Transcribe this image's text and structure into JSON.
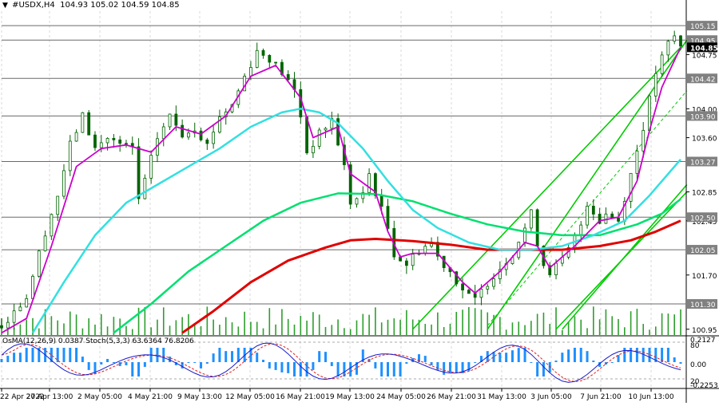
{
  "header": {
    "symbol": "#USDX,H4",
    "ohlc": "104.93 105.02 104.59 104.85"
  },
  "indicator_header": {
    "text": "OsMA(12,26,9) 0.0387  Stoch(5,3,3) 63.6364 76.8206"
  },
  "colors": {
    "background": "#ffffff",
    "candle": "#006400",
    "ema_fast": "#cc00cc",
    "ema_mid": "#33e0e0",
    "ema_slow": "#00e070",
    "ema_long": "#e00000",
    "channel": "#00cc00",
    "volume": "#2e9e2e",
    "osma": "#1e90ff",
    "stoch_main": "#1a1acc",
    "stoch_signal": "#e02020",
    "price_tag": "#000000"
  },
  "chart_data": {
    "type": "candlestick",
    "timeframe": "H4",
    "price_levels": [
      105.15,
      104.95,
      104.42,
      103.9,
      103.27,
      102.5,
      102.05,
      101.3
    ],
    "current_price": 104.85,
    "axis_ticks": [
      104.75,
      104.0,
      103.6,
      102.85,
      102.45,
      101.7,
      100.95
    ],
    "price_range": [
      100.87,
      105.35
    ],
    "x_labels": [
      "22 Apr 2022",
      "27 Apr 13:00",
      "2 May 05:00",
      "4 May 21:00",
      "9 May 13:00",
      "12 May 05:00",
      "16 May 21:00",
      "19 May 13:00",
      "24 May 05:00",
      "26 May 21:00",
      "31 May 13:00",
      "3 Jun 05:00",
      "7 Jun 21:00",
      "10 Jun 13:00"
    ],
    "close_path": [
      [
        0,
        101.0
      ],
      [
        4,
        101.4
      ],
      [
        7,
        102.3
      ],
      [
        9,
        102.8
      ],
      [
        11,
        103.5
      ],
      [
        13,
        103.9
      ],
      [
        15,
        103.45
      ],
      [
        17,
        103.6
      ],
      [
        19,
        103.5
      ],
      [
        21,
        103.45
      ],
      [
        22,
        102.75
      ],
      [
        23,
        103.0
      ],
      [
        25,
        103.6
      ],
      [
        27,
        103.9
      ],
      [
        29,
        103.65
      ],
      [
        31,
        103.75
      ],
      [
        33,
        103.5
      ],
      [
        35,
        103.9
      ],
      [
        37,
        104.05
      ],
      [
        39,
        104.45
      ],
      [
        41,
        104.8
      ],
      [
        43,
        104.7
      ],
      [
        45,
        104.5
      ],
      [
        47,
        104.25
      ],
      [
        48,
        103.9
      ],
      [
        49,
        103.4
      ],
      [
        51,
        103.65
      ],
      [
        53,
        103.85
      ],
      [
        55,
        103.2
      ],
      [
        56,
        102.7
      ],
      [
        58,
        102.8
      ],
      [
        59,
        103.1
      ],
      [
        60,
        102.85
      ],
      [
        62,
        102.35
      ],
      [
        63,
        102.0
      ],
      [
        65,
        101.85
      ],
      [
        67,
        102.05
      ],
      [
        69,
        102.15
      ],
      [
        70,
        101.95
      ],
      [
        72,
        101.75
      ],
      [
        74,
        101.5
      ],
      [
        75,
        101.4
      ],
      [
        76,
        101.35
      ],
      [
        78,
        101.6
      ],
      [
        80,
        101.8
      ],
      [
        82,
        102.0
      ],
      [
        84,
        102.35
      ],
      [
        85,
        102.55
      ],
      [
        86,
        102.15
      ],
      [
        87,
        101.85
      ],
      [
        88,
        101.75
      ],
      [
        90,
        101.9
      ],
      [
        91,
        102.05
      ],
      [
        93,
        102.4
      ],
      [
        94,
        102.7
      ],
      [
        96,
        102.45
      ],
      [
        97,
        102.55
      ],
      [
        98,
        102.5
      ],
      [
        99,
        102.45
      ],
      [
        101,
        103.1
      ],
      [
        103,
        103.75
      ],
      [
        105,
        104.5
      ],
      [
        107,
        104.9
      ],
      [
        108,
        105.0
      ],
      [
        109,
        104.85
      ]
    ],
    "ema_fast": [
      [
        0,
        100.9
      ],
      [
        4,
        101.1
      ],
      [
        8,
        102.1
      ],
      [
        12,
        103.2
      ],
      [
        16,
        103.45
      ],
      [
        20,
        103.5
      ],
      [
        24,
        103.4
      ],
      [
        28,
        103.75
      ],
      [
        32,
        103.65
      ],
      [
        36,
        103.9
      ],
      [
        40,
        104.45
      ],
      [
        44,
        104.6
      ],
      [
        48,
        104.15
      ],
      [
        50,
        103.6
      ],
      [
        54,
        103.75
      ],
      [
        56,
        103.1
      ],
      [
        60,
        102.85
      ],
      [
        62,
        102.3
      ],
      [
        64,
        101.95
      ],
      [
        66,
        102.0
      ],
      [
        70,
        102.0
      ],
      [
        74,
        101.6
      ],
      [
        76,
        101.45
      ],
      [
        80,
        101.75
      ],
      [
        84,
        102.15
      ],
      [
        86,
        102.1
      ],
      [
        88,
        101.8
      ],
      [
        92,
        102.1
      ],
      [
        96,
        102.45
      ],
      [
        99,
        102.5
      ],
      [
        102,
        103.0
      ],
      [
        104,
        103.7
      ],
      [
        106,
        104.3
      ],
      [
        109,
        104.85
      ]
    ],
    "ema_mid": [
      [
        5,
        100.9
      ],
      [
        10,
        101.6
      ],
      [
        15,
        102.25
      ],
      [
        20,
        102.7
      ],
      [
        25,
        102.95
      ],
      [
        30,
        103.2
      ],
      [
        35,
        103.45
      ],
      [
        40,
        103.75
      ],
      [
        45,
        103.95
      ],
      [
        48,
        104.0
      ],
      [
        51,
        103.95
      ],
      [
        54,
        103.8
      ],
      [
        58,
        103.45
      ],
      [
        62,
        103.0
      ],
      [
        66,
        102.6
      ],
      [
        70,
        102.35
      ],
      [
        75,
        102.15
      ],
      [
        80,
        102.05
      ],
      [
        85,
        102.05
      ],
      [
        90,
        102.1
      ],
      [
        95,
        102.25
      ],
      [
        100,
        102.45
      ],
      [
        104,
        102.8
      ],
      [
        109,
        103.3
      ]
    ],
    "ema_slow": [
      [
        18,
        100.9
      ],
      [
        24,
        101.3
      ],
      [
        30,
        101.75
      ],
      [
        36,
        102.1
      ],
      [
        42,
        102.45
      ],
      [
        48,
        102.7
      ],
      [
        54,
        102.83
      ],
      [
        60,
        102.82
      ],
      [
        66,
        102.72
      ],
      [
        72,
        102.55
      ],
      [
        78,
        102.4
      ],
      [
        84,
        102.3
      ],
      [
        90,
        102.25
      ],
      [
        96,
        102.25
      ],
      [
        102,
        102.4
      ],
      [
        106,
        102.55
      ],
      [
        109,
        102.75
      ]
    ],
    "ema_long": [
      [
        29,
        100.9
      ],
      [
        34,
        101.2
      ],
      [
        40,
        101.6
      ],
      [
        46,
        101.9
      ],
      [
        52,
        102.08
      ],
      [
        56,
        102.18
      ],
      [
        60,
        102.2
      ],
      [
        66,
        102.17
      ],
      [
        72,
        102.12
      ],
      [
        78,
        102.05
      ],
      [
        84,
        102.05
      ],
      [
        90,
        102.05
      ],
      [
        96,
        102.1
      ],
      [
        101,
        102.18
      ],
      [
        105,
        102.3
      ],
      [
        109,
        102.45
      ]
    ],
    "channel": {
      "lower": [
        [
          66,
          100.95
        ],
        [
          109,
          104.85
        ]
      ],
      "upper": [
        [
          78,
          100.95
        ],
        [
          110,
          104.95
        ]
      ],
      "mid_dashed": [
        [
          78,
          101.0
        ],
        [
          110,
          104.25
        ]
      ],
      "upper2": [
        [
          89,
          100.95
        ],
        [
          110,
          102.85
        ]
      ],
      "upper3": [
        [
          90,
          100.95
        ],
        [
          110,
          102.95
        ]
      ]
    },
    "indicator": {
      "osma_value": 0.0387,
      "stoch_k": 63.6364,
      "stoch_d": 76.8206,
      "osma_scale_labels": [
        "0.2127",
        "0.00",
        "-0.2253"
      ],
      "stoch_levels": [
        "80",
        "20"
      ]
    }
  }
}
